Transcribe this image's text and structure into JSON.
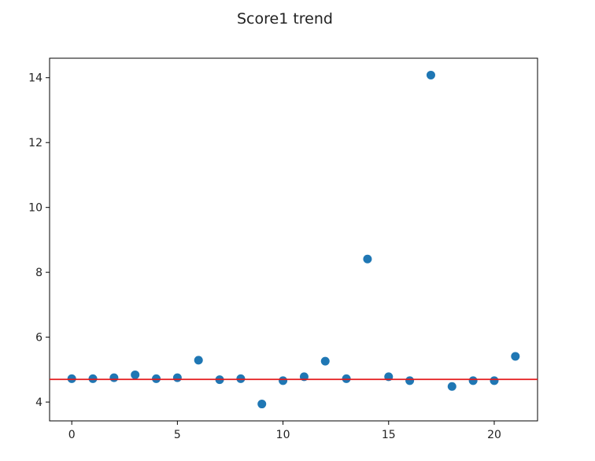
{
  "chart_data": {
    "type": "scatter",
    "title": "Score1 trend",
    "xlabel": "",
    "ylabel": "",
    "xlim": [
      -1.05,
      22.05
    ],
    "ylim": [
      3.42,
      14.6
    ],
    "xticks": [
      0,
      5,
      10,
      15,
      20
    ],
    "yticks": [
      4,
      6,
      8,
      10,
      12,
      14
    ],
    "grid": false,
    "legend": "none",
    "series": [
      {
        "color": "#1f77b4",
        "x": [
          0,
          1,
          2,
          3,
          4,
          5,
          6,
          7,
          8,
          9,
          10,
          11,
          12,
          13,
          14,
          15,
          16,
          17,
          18,
          19,
          20,
          21
        ],
        "y": [
          4.72,
          4.72,
          4.75,
          4.84,
          4.72,
          4.75,
          5.29,
          4.69,
          4.72,
          3.94,
          4.66,
          4.78,
          5.26,
          4.72,
          8.41,
          4.78,
          4.66,
          14.08,
          4.48,
          4.66,
          4.66,
          5.41
        ]
      }
    ],
    "reference_line": {
      "orientation": "horizontal",
      "y": 4.7,
      "color": "#e41a1c"
    }
  }
}
